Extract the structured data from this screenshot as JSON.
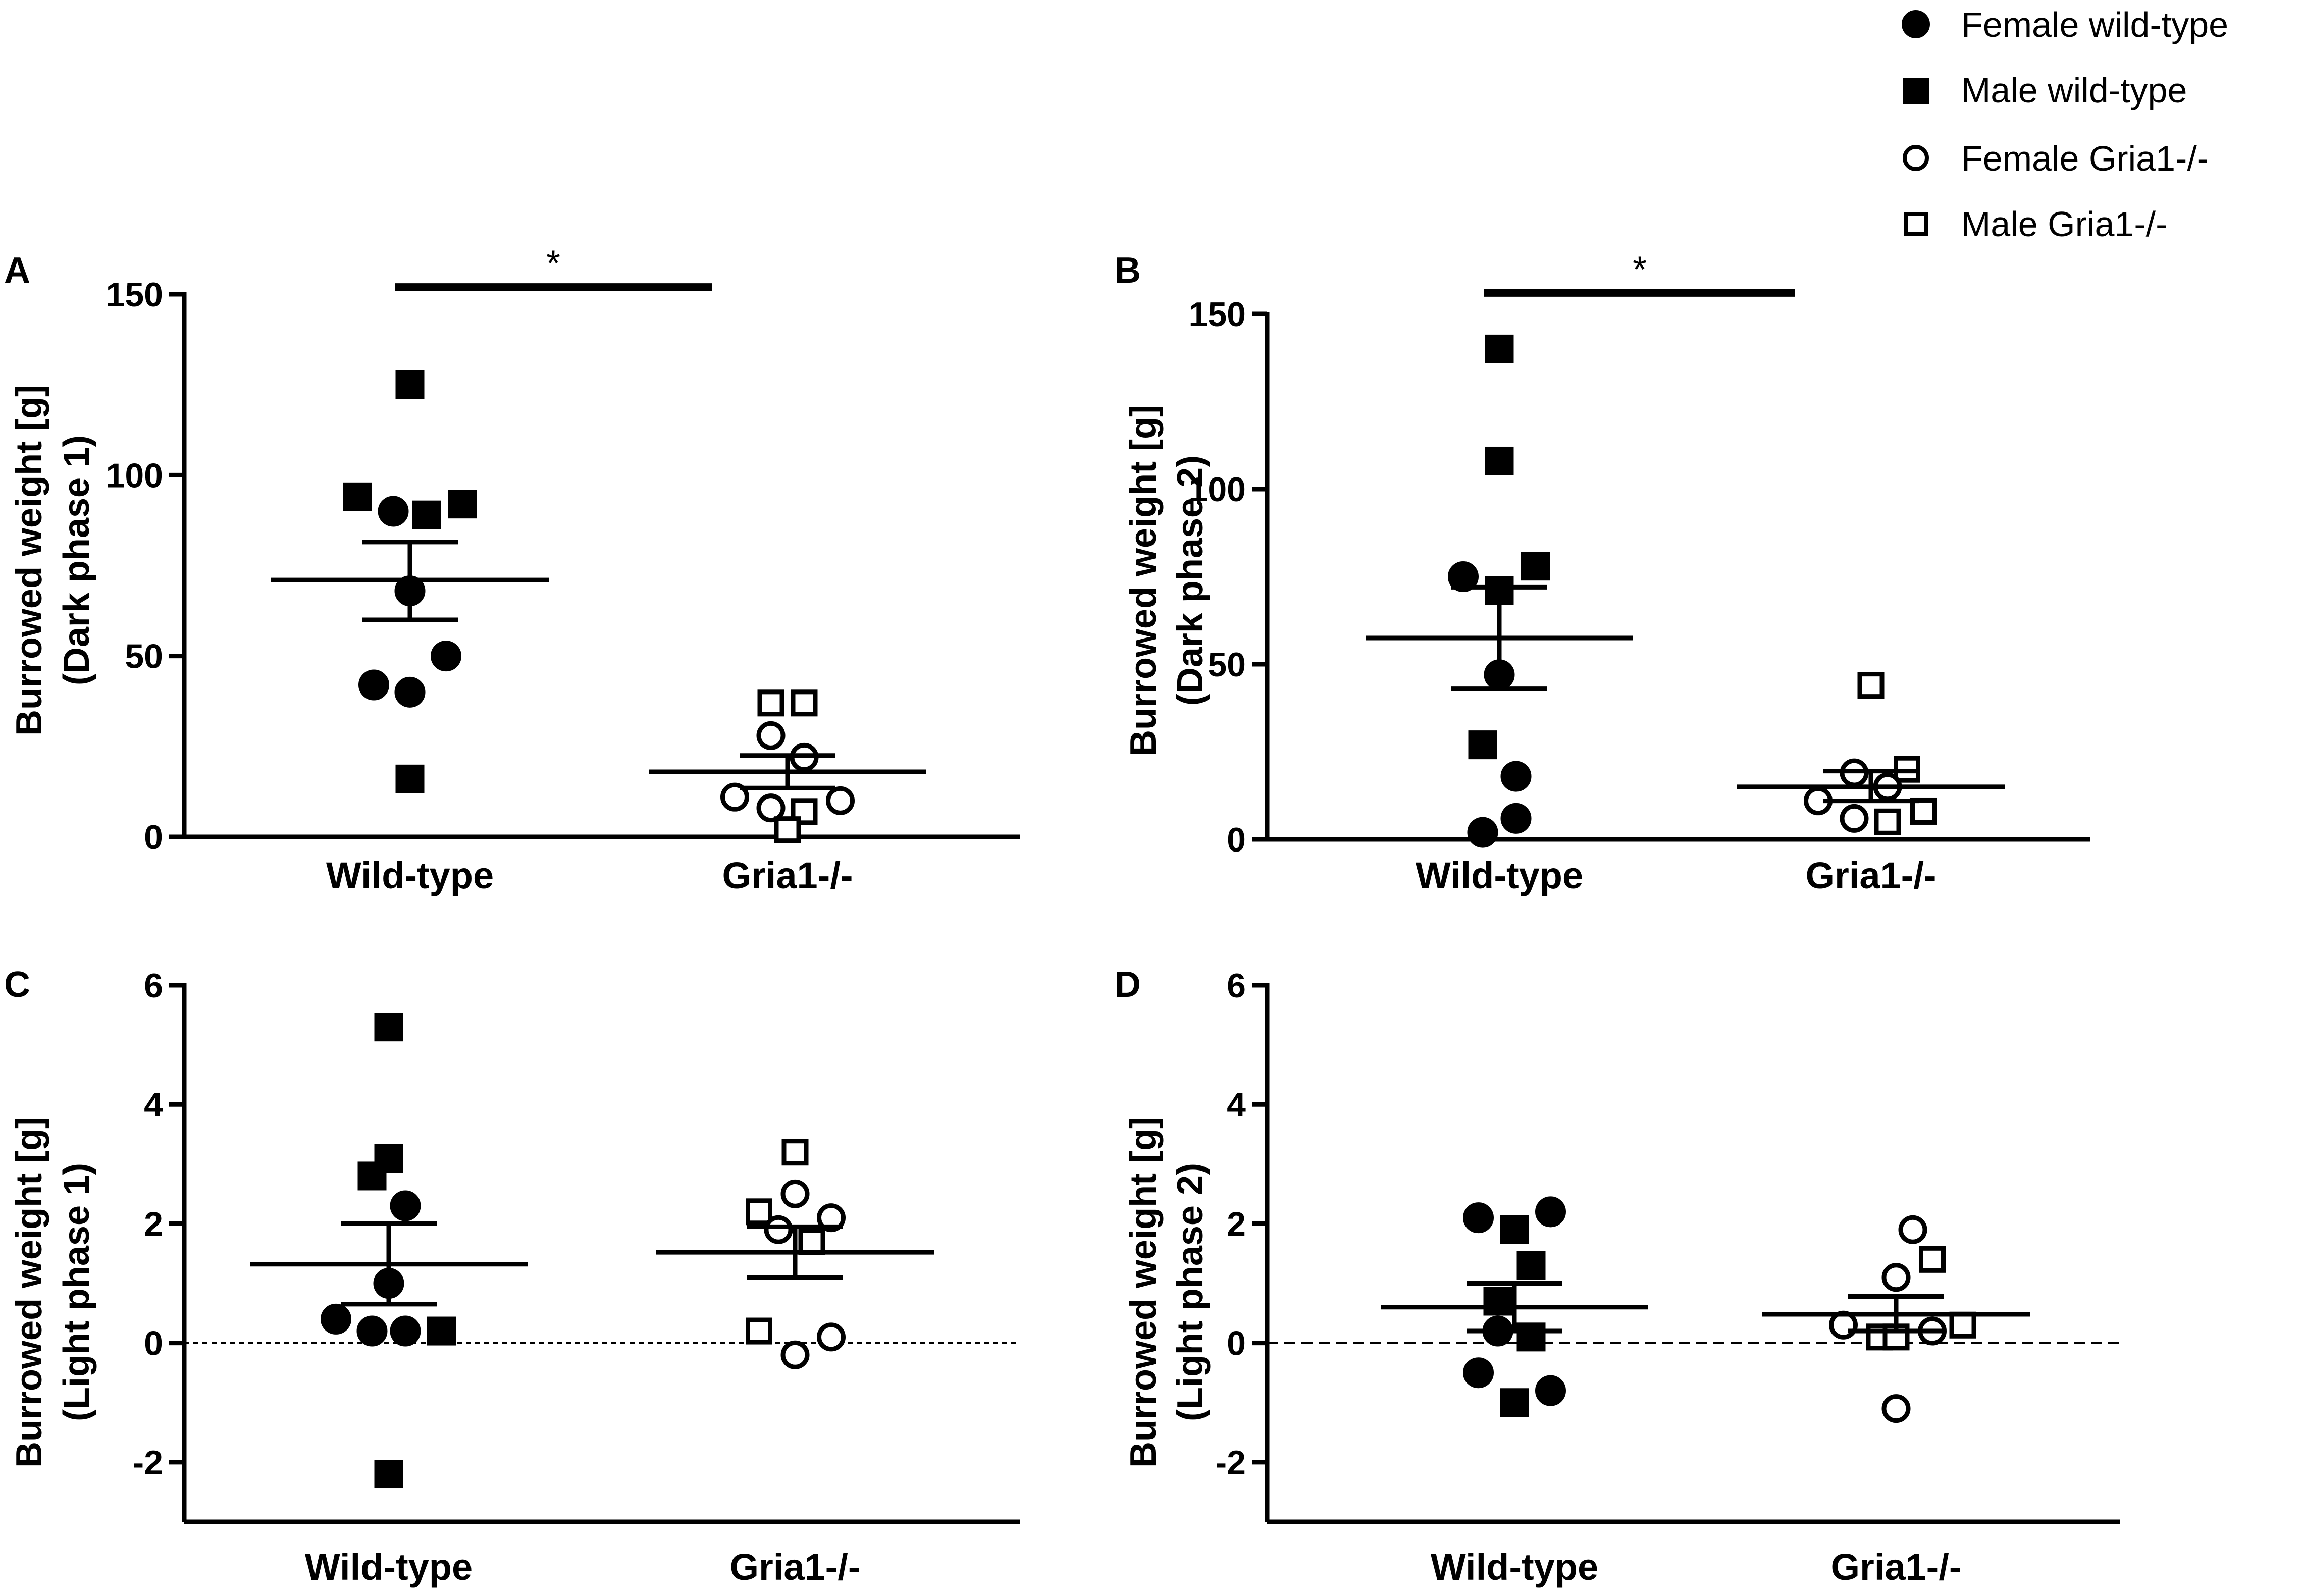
{
  "legend": {
    "items": [
      {
        "label": "Female wild-type",
        "marker": "circle",
        "filled": true
      },
      {
        "label": "Male wild-type",
        "marker": "square",
        "filled": true
      },
      {
        "label": "Female Gria1-/-",
        "marker": "circle",
        "filled": false
      },
      {
        "label": "Male Gria1-/-",
        "marker": "square",
        "filled": false
      }
    ]
  },
  "chart_data": [
    {
      "type": "scatter",
      "panel": "A",
      "ylabel_line1": "Burrowed weight [g]",
      "ylabel_line2": "(Dark phase 1)",
      "ylim": [
        0,
        150
      ],
      "yticks": [
        0,
        50,
        100,
        150
      ],
      "ytick_labels": [
        "0",
        "50",
        "100",
        "150"
      ],
      "zero_line": "none",
      "categories": [
        "Wild-type",
        "Gria1-/-"
      ],
      "significance": {
        "label": "*",
        "between": [
          0,
          1
        ],
        "y": 152
      },
      "groups": [
        {
          "category": "Wild-type",
          "mean": 71,
          "sem_low": 60,
          "sem_high": 81.5,
          "points": [
            {
              "value": 125,
              "marker": "square",
              "filled": true,
              "jitter": 0
            },
            {
              "value": 94,
              "marker": "square",
              "filled": true,
              "jitter": -1.9
            },
            {
              "value": 90,
              "marker": "circle",
              "filled": true,
              "jitter": -0.6
            },
            {
              "value": 89,
              "marker": "square",
              "filled": true,
              "jitter": 0.6
            },
            {
              "value": 92,
              "marker": "square",
              "filled": true,
              "jitter": 1.9
            },
            {
              "value": 68,
              "marker": "circle",
              "filled": true,
              "jitter": 0
            },
            {
              "value": 42,
              "marker": "circle",
              "filled": true,
              "jitter": -1.3
            },
            {
              "value": 40,
              "marker": "circle",
              "filled": true,
              "jitter": 0
            },
            {
              "value": 50,
              "marker": "circle",
              "filled": true,
              "jitter": 1.3
            },
            {
              "value": 16,
              "marker": "square",
              "filled": true,
              "jitter": 0
            }
          ]
        },
        {
          "category": "Gria1-/-",
          "mean": 18,
          "sem_low": 13.5,
          "sem_high": 22.5,
          "points": [
            {
              "value": 37,
              "marker": "square",
              "filled": false,
              "jitter": -0.6
            },
            {
              "value": 37,
              "marker": "square",
              "filled": false,
              "jitter": 0.6
            },
            {
              "value": 28,
              "marker": "circle",
              "filled": false,
              "jitter": -0.6
            },
            {
              "value": 22,
              "marker": "circle",
              "filled": false,
              "jitter": 0.6
            },
            {
              "value": 11,
              "marker": "circle",
              "filled": false,
              "jitter": -1.9
            },
            {
              "value": 8,
              "marker": "circle",
              "filled": false,
              "jitter": -0.6
            },
            {
              "value": 7,
              "marker": "square",
              "filled": false,
              "jitter": 0.6
            },
            {
              "value": 10,
              "marker": "circle",
              "filled": false,
              "jitter": 1.9
            },
            {
              "value": 2,
              "marker": "square",
              "filled": false,
              "jitter": 0
            }
          ]
        }
      ]
    },
    {
      "type": "scatter",
      "panel": "B",
      "ylabel_line1": "Burrowed weight [g]",
      "ylabel_line2": "(Dark phase 2)",
      "ylim": [
        0,
        150
      ],
      "yticks": [
        0,
        50,
        100,
        150
      ],
      "ytick_labels": [
        "0",
        "50",
        "100",
        "150"
      ],
      "zero_line": "none",
      "categories": [
        "Wild-type",
        "Gria1-/-"
      ],
      "significance": {
        "label": "*",
        "between": [
          0,
          1
        ],
        "y": 156
      },
      "groups": [
        {
          "category": "Wild-type",
          "mean": 57.5,
          "sem_low": 43,
          "sem_high": 72,
          "points": [
            {
              "value": 140,
              "marker": "square",
              "filled": true,
              "jitter": 0
            },
            {
              "value": 108,
              "marker": "square",
              "filled": true,
              "jitter": 0
            },
            {
              "value": 78,
              "marker": "square",
              "filled": true,
              "jitter": 1.3
            },
            {
              "value": 75,
              "marker": "circle",
              "filled": true,
              "jitter": -1.3
            },
            {
              "value": 71,
              "marker": "square",
              "filled": true,
              "jitter": 0
            },
            {
              "value": 47,
              "marker": "circle",
              "filled": true,
              "jitter": 0
            },
            {
              "value": 27,
              "marker": "square",
              "filled": true,
              "jitter": -0.6
            },
            {
              "value": 18,
              "marker": "circle",
              "filled": true,
              "jitter": 0.6
            },
            {
              "value": 6,
              "marker": "circle",
              "filled": true,
              "jitter": 0.6
            },
            {
              "value": 2,
              "marker": "circle",
              "filled": true,
              "jitter": -0.6
            }
          ]
        },
        {
          "category": "Gria1-/-",
          "mean": 15,
          "sem_low": 11,
          "sem_high": 19.5,
          "points": [
            {
              "value": 44,
              "marker": "square",
              "filled": false,
              "jitter": 0
            },
            {
              "value": 19,
              "marker": "circle",
              "filled": false,
              "jitter": -0.6
            },
            {
              "value": 20,
              "marker": "square",
              "filled": false,
              "jitter": 1.3
            },
            {
              "value": 15,
              "marker": "circle",
              "filled": false,
              "jitter": 0.6
            },
            {
              "value": 11,
              "marker": "circle",
              "filled": false,
              "jitter": -1.9
            },
            {
              "value": 8,
              "marker": "square",
              "filled": false,
              "jitter": 1.9
            },
            {
              "value": 6,
              "marker": "circle",
              "filled": false,
              "jitter": -0.6
            },
            {
              "value": 5,
              "marker": "square",
              "filled": false,
              "jitter": 0.6
            }
          ]
        }
      ]
    },
    {
      "type": "scatter",
      "panel": "C",
      "ylabel_line1": "Burrowed weight [g]",
      "ylabel_line2": "(Light phase 1)",
      "ylim": [
        -3,
        6
      ],
      "yticks": [
        -2,
        0,
        2,
        4,
        6
      ],
      "ytick_labels": [
        "-2",
        "0",
        "2",
        "4",
        "6"
      ],
      "zero_line": "dotted",
      "categories": [
        "Wild-type",
        "Gria1-/-"
      ],
      "significance": null,
      "groups": [
        {
          "category": "Wild-type",
          "mean": 1.32,
          "sem_low": 0.65,
          "sem_high": 2.0,
          "points": [
            {
              "value": 5.3,
              "marker": "square",
              "filled": true,
              "jitter": 0
            },
            {
              "value": 3.1,
              "marker": "square",
              "filled": true,
              "jitter": 0
            },
            {
              "value": 2.8,
              "marker": "square",
              "filled": true,
              "jitter": -0.6
            },
            {
              "value": 2.3,
              "marker": "circle",
              "filled": true,
              "jitter": 0.6
            },
            {
              "value": 1.0,
              "marker": "circle",
              "filled": true,
              "jitter": 0
            },
            {
              "value": 0.4,
              "marker": "circle",
              "filled": true,
              "jitter": -1.9
            },
            {
              "value": 0.2,
              "marker": "circle",
              "filled": true,
              "jitter": -0.6
            },
            {
              "value": 0.2,
              "marker": "circle",
              "filled": true,
              "jitter": 0.6
            },
            {
              "value": 0.2,
              "marker": "square",
              "filled": true,
              "jitter": 1.9
            },
            {
              "value": -2.2,
              "marker": "square",
              "filled": true,
              "jitter": 0
            }
          ]
        },
        {
          "category": "Gria1-/-",
          "mean": 1.52,
          "sem_low": 1.1,
          "sem_high": 1.95,
          "points": [
            {
              "value": 3.2,
              "marker": "square",
              "filled": false,
              "jitter": 0
            },
            {
              "value": 2.5,
              "marker": "circle",
              "filled": false,
              "jitter": 0
            },
            {
              "value": 2.2,
              "marker": "square",
              "filled": false,
              "jitter": -1.3
            },
            {
              "value": 2.1,
              "marker": "circle",
              "filled": false,
              "jitter": 1.3
            },
            {
              "value": 1.9,
              "marker": "circle",
              "filled": false,
              "jitter": -0.6
            },
            {
              "value": 1.7,
              "marker": "square",
              "filled": false,
              "jitter": 0.6
            },
            {
              "value": 0.2,
              "marker": "square",
              "filled": false,
              "jitter": -1.3
            },
            {
              "value": 0.1,
              "marker": "circle",
              "filled": false,
              "jitter": 1.3
            },
            {
              "value": -0.2,
              "marker": "circle",
              "filled": false,
              "jitter": 0
            }
          ]
        }
      ]
    },
    {
      "type": "scatter",
      "panel": "D",
      "ylabel_line1": "Burrowed weight [g]",
      "ylabel_line2": "(Light phase 2)",
      "ylim": [
        -3,
        6
      ],
      "yticks": [
        -2,
        0,
        2,
        4,
        6
      ],
      "ytick_labels": [
        "-2",
        "0",
        "2",
        "4",
        "6"
      ],
      "zero_line": "dashed",
      "categories": [
        "Wild-type",
        "Gria1-/-"
      ],
      "significance": null,
      "groups": [
        {
          "category": "Wild-type",
          "mean": 0.6,
          "sem_low": 0.2,
          "sem_high": 1.0,
          "points": [
            {
              "value": 2.1,
              "marker": "circle",
              "filled": true,
              "jitter": -1.3
            },
            {
              "value": 2.2,
              "marker": "circle",
              "filled": true,
              "jitter": 1.3
            },
            {
              "value": 1.9,
              "marker": "square",
              "filled": true,
              "jitter": 0
            },
            {
              "value": 1.3,
              "marker": "square",
              "filled": true,
              "jitter": 0.6
            },
            {
              "value": 0.7,
              "marker": "square",
              "filled": true,
              "jitter": -0.6
            },
            {
              "value": 0.2,
              "marker": "circle",
              "filled": true,
              "jitter": -0.6
            },
            {
              "value": 0.1,
              "marker": "square",
              "filled": true,
              "jitter": 0.6
            },
            {
              "value": -0.5,
              "marker": "circle",
              "filled": true,
              "jitter": -1.3
            },
            {
              "value": -0.8,
              "marker": "circle",
              "filled": true,
              "jitter": 1.3
            },
            {
              "value": -1.0,
              "marker": "square",
              "filled": true,
              "jitter": 0
            }
          ]
        },
        {
          "category": "Gria1-/-",
          "mean": 0.48,
          "sem_low": 0.2,
          "sem_high": 0.78,
          "points": [
            {
              "value": 1.9,
              "marker": "circle",
              "filled": false,
              "jitter": 0.6
            },
            {
              "value": 1.4,
              "marker": "square",
              "filled": false,
              "jitter": 1.3
            },
            {
              "value": 1.1,
              "marker": "circle",
              "filled": false,
              "jitter": 0
            },
            {
              "value": 0.3,
              "marker": "circle",
              "filled": false,
              "jitter": -1.9
            },
            {
              "value": 0.3,
              "marker": "square",
              "filled": false,
              "jitter": 2.4
            },
            {
              "value": 0.2,
              "marker": "circle",
              "filled": false,
              "jitter": 1.3
            },
            {
              "value": 0.1,
              "marker": "square",
              "filled": false,
              "jitter": -0.6
            },
            {
              "value": 0.1,
              "marker": "square",
              "filled": false,
              "jitter": 0
            },
            {
              "value": -1.1,
              "marker": "circle",
              "filled": false,
              "jitter": 0
            }
          ]
        }
      ]
    }
  ]
}
